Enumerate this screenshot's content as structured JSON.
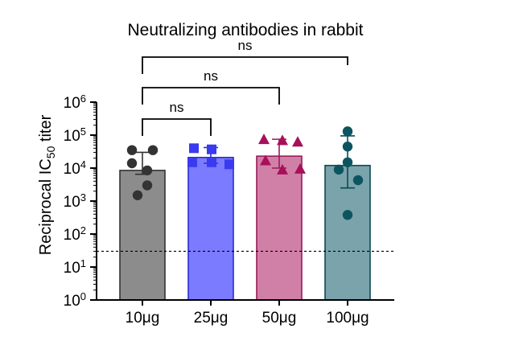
{
  "chart_data": {
    "type": "bar",
    "title": "Neutralizing antibodies in rabbit",
    "ylabel": {
      "prefix": "Reciprocal IC",
      "subscript": "50",
      "suffix": " titer"
    },
    "yscale": "log",
    "ylim": [
      1,
      1000000
    ],
    "yticks": [
      {
        "value": 1,
        "base": "10",
        "exp": "0"
      },
      {
        "value": 10,
        "base": "10",
        "exp": "1"
      },
      {
        "value": 100,
        "base": "10",
        "exp": "2"
      },
      {
        "value": 1000,
        "base": "10",
        "exp": "3"
      },
      {
        "value": 10000,
        "base": "10",
        "exp": "4"
      },
      {
        "value": 100000,
        "base": "10",
        "exp": "5"
      },
      {
        "value": 1000000,
        "base": "10",
        "exp": "6"
      }
    ],
    "categories": [
      "10μg",
      "25μg",
      "50μg",
      "100μg"
    ],
    "bar_values": [
      8500,
      21000,
      23000,
      12000
    ],
    "error_bars": [
      [
        6500,
        30000
      ],
      [
        14000,
        42000
      ],
      [
        10000,
        75000
      ],
      [
        2500,
        95000
      ]
    ],
    "points": [
      [
        35000,
        35000,
        14000,
        8500,
        3000,
        1500
      ],
      [
        40000,
        37000,
        15000,
        15000,
        13000
      ],
      [
        75000,
        70000,
        63000,
        17000,
        9500,
        9000
      ],
      [
        130000,
        45000,
        15000,
        9000,
        4300,
        380
      ]
    ],
    "markers": [
      "circle",
      "square",
      "triangle",
      "circle"
    ],
    "bar_fill_colors": [
      "#8c8c8c",
      "#7b7bff",
      "#d080a6",
      "#7aa3ab"
    ],
    "bar_edge_colors": [
      "#333333",
      "#2b2bd8",
      "#9a1a5a",
      "#0c4a55"
    ],
    "point_colors": [
      "#333333",
      "#3a3af0",
      "#a8105a",
      "#0c5560"
    ],
    "reference_line": {
      "value": 30,
      "style": "dashed"
    },
    "comparisons": [
      {
        "from": 0,
        "to": 1,
        "label": "ns"
      },
      {
        "from": 0,
        "to": 2,
        "label": "ns"
      },
      {
        "from": 0,
        "to": 3,
        "label": "ns"
      }
    ],
    "grid": false
  }
}
